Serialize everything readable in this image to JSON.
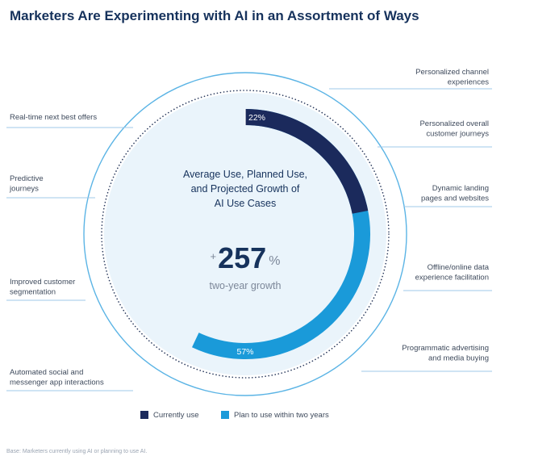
{
  "title": "Marketers Are Experimenting with AI in an Assortment of Ways",
  "center": {
    "heading_lines": [
      "Average Use, Planned Use,",
      "and Projected Growth of",
      "AI Use Cases"
    ],
    "plus": "+",
    "growth_value": "257",
    "percent": "%",
    "growth_label": "two-year growth"
  },
  "left_labels": [
    [
      "Real-time next best offers"
    ],
    [
      "Predictive",
      "journeys"
    ],
    [
      "Improved customer",
      "segmentation"
    ],
    [
      "Automated social and",
      "messenger app interactions"
    ]
  ],
  "right_labels": [
    [
      "Personalized channel",
      "experiences"
    ],
    [
      "Personalized overall",
      "customer journeys"
    ],
    [
      "Dynamic landing",
      "pages and websites"
    ],
    [
      "Offline/online data",
      "experience facilitation"
    ],
    [
      "Programmatic advertising",
      "and media buying"
    ]
  ],
  "legend": {
    "current": "Currently use",
    "planned": "Plan to use within two years"
  },
  "footnote": "Base: Marketers currently using AI or planning to use AI.",
  "colors": {
    "current": "#1b2a5c",
    "planned": "#1a9ad9",
    "outer_ring": "#5bb4e5",
    "dots": "#2b3b5e",
    "inner_fill": "#eaf4fb",
    "title": "#16325c"
  },
  "chart_data": {
    "type": "radial-bar",
    "series": [
      {
        "name": "Currently use",
        "value": 22,
        "display": "22%"
      },
      {
        "name": "Plan to use within two years",
        "value": 57,
        "display": "57%"
      }
    ],
    "unit": "%",
    "headline_growth_percent": 257
  }
}
